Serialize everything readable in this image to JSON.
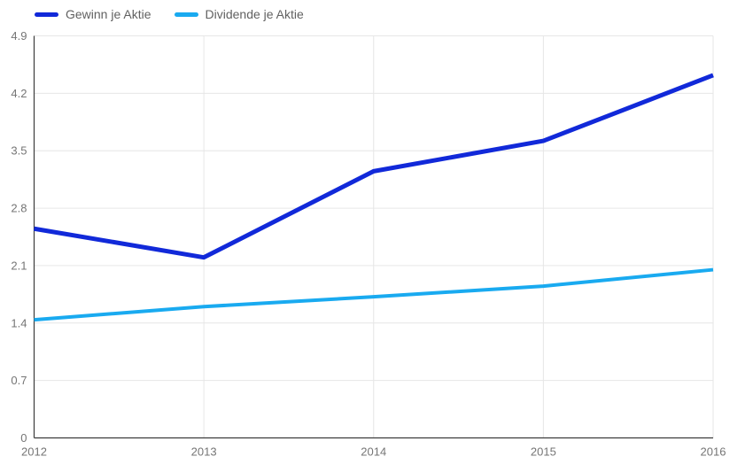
{
  "chart_data": {
    "type": "line",
    "title": "",
    "xlabel": "",
    "ylabel": "",
    "x": [
      "2012",
      "2013",
      "2014",
      "2015",
      "2016"
    ],
    "series": [
      {
        "name": "Gewinn je Aktie",
        "color": "#1129d9",
        "values": [
          2.55,
          2.2,
          3.25,
          3.62,
          4.42
        ]
      },
      {
        "name": "Dividende je Aktie",
        "color": "#19aaf0",
        "values": [
          1.44,
          1.6,
          1.72,
          1.85,
          2.05
        ]
      }
    ],
    "ylim": [
      0,
      4.9
    ],
    "yticks": [
      "0",
      "0.7",
      "1.4",
      "2.1",
      "2.8",
      "3.5",
      "4.2",
      "4.9"
    ],
    "xticks": [
      "2012",
      "2013",
      "2014",
      "2015",
      "2016"
    ],
    "grid": true,
    "legend_position": "top-left"
  },
  "styles": {
    "background": "#ffffff",
    "grid_color": "#e6e6e6",
    "axis_color": "#3c3c3c",
    "tick_label_color": "#757575",
    "legend_text_color": "#616161",
    "series_colors": [
      "#1129d9",
      "#19aaf0"
    ]
  }
}
